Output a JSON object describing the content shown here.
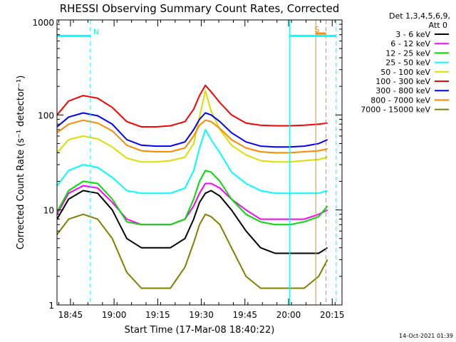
{
  "chart_data": {
    "type": "line",
    "title": "RHESSI Observing Summary Count Rates, Corrected",
    "xlabel": "Start Time (17-Mar-08 18:40:22)",
    "ylabel": "Corrected Count Rate (s⁻¹ detector⁻¹)",
    "y_scale": "log",
    "ylim": [
      1,
      1000
    ],
    "x_unit": "minutes after 18:40:22",
    "xlim": [
      0,
      98
    ],
    "x_ticks": [
      {
        "label": "18:45",
        "minutes": 4.63
      },
      {
        "label": "19:00",
        "minutes": 19.63
      },
      {
        "label": "19:15",
        "minutes": 34.63
      },
      {
        "label": "19:30",
        "minutes": 49.63
      },
      {
        "label": "19:45",
        "minutes": 64.63
      },
      {
        "label": "20:00",
        "minutes": 79.63
      },
      {
        "label": "20:15",
        "minutes": 94.63
      }
    ],
    "y_ticks": [
      {
        "label": "1",
        "value": 1
      },
      {
        "label": "10",
        "value": 10
      },
      {
        "label": "100",
        "value": 100
      },
      {
        "label": "1000",
        "value": 1000
      }
    ],
    "legend_header": [
      "Det 1,3,4,5,6,9,",
      "Att 0"
    ],
    "legend_position": "right",
    "x": [
      0,
      4,
      9,
      14,
      19,
      24,
      29,
      34,
      39,
      44,
      47,
      49,
      51,
      53,
      56,
      60,
      65,
      70,
      75,
      80,
      85,
      90,
      93
    ],
    "series": [
      {
        "name": "3 - 6 keV",
        "color": "#000000",
        "values": [
          8,
          13,
          16,
          15,
          10,
          5,
          4,
          4,
          4,
          5,
          8,
          12,
          15,
          16,
          14,
          10,
          6,
          4,
          3.5,
          3.5,
          3.5,
          3.5,
          4
        ]
      },
      {
        "name": "6 - 12 keV",
        "color": "#ff00ff",
        "values": [
          9,
          15,
          18,
          17,
          12,
          8,
          7,
          7,
          7,
          8,
          11,
          15,
          19,
          19,
          17,
          13,
          10,
          8,
          8,
          8,
          8,
          9,
          10
        ]
      },
      {
        "name": "12 - 25 keV",
        "color": "#00dd00",
        "values": [
          9.5,
          16,
          20,
          19,
          13,
          7.5,
          7,
          7,
          7,
          8,
          13,
          20,
          26,
          25,
          20,
          13,
          9,
          7.5,
          7,
          7,
          7.5,
          8.5,
          11
        ]
      },
      {
        "name": "25 - 50 keV",
        "color": "#00ffff",
        "values": [
          18,
          26,
          30,
          28,
          22,
          16,
          15,
          15,
          15,
          17,
          26,
          45,
          70,
          55,
          40,
          25,
          19,
          16,
          15,
          15,
          15,
          15,
          16
        ]
      },
      {
        "name": "50 - 100 keV",
        "color": "#dddd00",
        "values": [
          40,
          55,
          60,
          56,
          46,
          35,
          32,
          32,
          33,
          36,
          50,
          95,
          180,
          110,
          70,
          48,
          38,
          33,
          32,
          32,
          33,
          34,
          36
        ]
      },
      {
        "name": "100 - 300 keV",
        "color": "#ff0000",
        "values": [
          100,
          140,
          160,
          150,
          120,
          85,
          75,
          75,
          77,
          85,
          115,
          160,
          205,
          175,
          135,
          100,
          82,
          78,
          77,
          77,
          78,
          80,
          82
        ]
      },
      {
        "name": "300 - 800 keV",
        "color": "#0000ff",
        "values": [
          75,
          95,
          105,
          98,
          80,
          55,
          48,
          47,
          47,
          52,
          70,
          90,
          105,
          100,
          85,
          65,
          52,
          47,
          46,
          46,
          47,
          50,
          55
        ]
      },
      {
        "name": "800 - 7000 keV",
        "color": "#ff8800",
        "values": [
          65,
          80,
          88,
          82,
          68,
          48,
          42,
          41,
          41,
          45,
          60,
          78,
          88,
          85,
          72,
          55,
          45,
          41,
          40,
          40,
          41,
          42,
          44
        ]
      },
      {
        "name": "7000 - 15000 keV",
        "color": "#808000",
        "values": [
          5.5,
          8,
          9,
          8,
          5,
          2.2,
          1.5,
          1.5,
          1.5,
          2.5,
          4.5,
          7,
          9,
          8.5,
          7,
          4,
          2,
          1.5,
          1.5,
          1.5,
          1.5,
          2,
          3
        ]
      }
    ],
    "annotations": [
      {
        "label": "N",
        "type": "night-interval-bar",
        "x_range": [
          0,
          11.5
        ],
        "y_value": 680,
        "color": "#00ffff"
      },
      {
        "label": "S",
        "type": "saa-bar",
        "x_range": [
          89,
          92.5
        ],
        "y_value": 720,
        "color": "#ff8800"
      },
      {
        "label": "",
        "type": "night-interval-bar",
        "x_range": [
          80,
          96
        ],
        "y_value": 680,
        "color": "#00ffff"
      }
    ],
    "vertical_lines": [
      {
        "x": 0,
        "style": "solid",
        "color": "#00ffff"
      },
      {
        "x": 11.5,
        "style": "dashed",
        "color": "#00ffff"
      },
      {
        "x": 80,
        "style": "solid",
        "color": "#00ffff"
      },
      {
        "x": 96,
        "style": "dashed",
        "color": "#00ffff"
      },
      {
        "x": 89,
        "style": "solid",
        "color": "#ff8800"
      },
      {
        "x": 92.5,
        "style": "dashed",
        "color": "#ff8800"
      }
    ]
  },
  "footer": {
    "timestamp": "14-Oct-2021 01:39"
  }
}
